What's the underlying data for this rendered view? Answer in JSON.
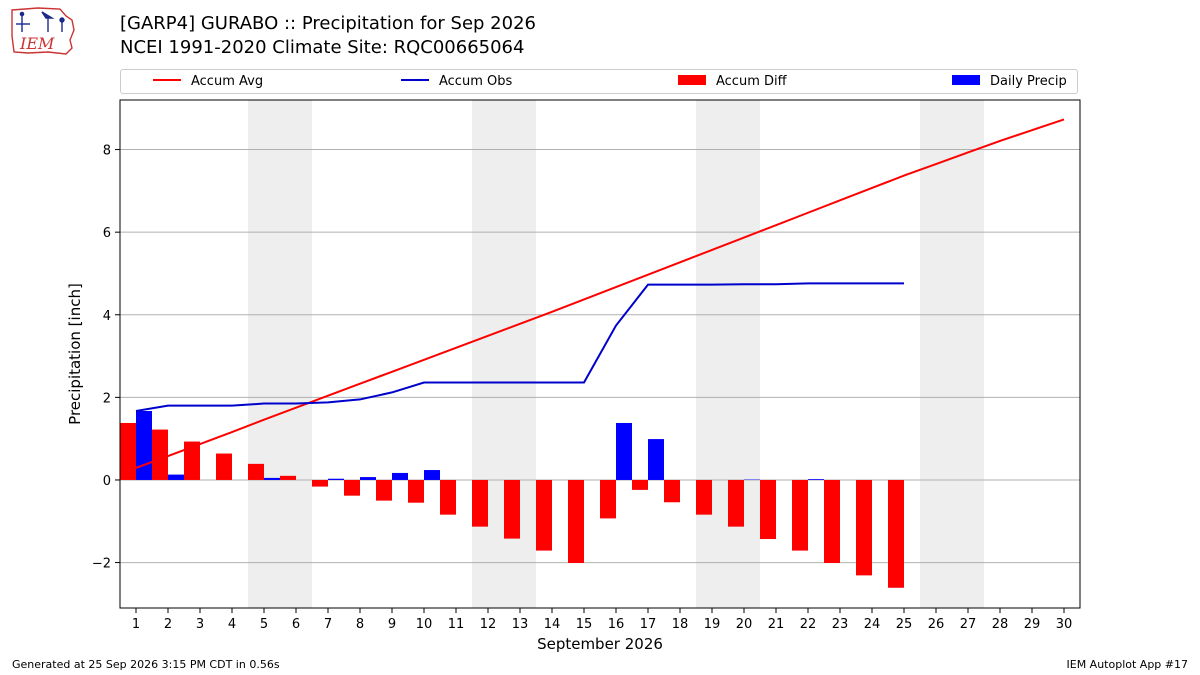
{
  "header": {
    "title_line1": "[GARP4] GURABO :: Precipitation for Sep 2026",
    "title_line2": "NCEI 1991-2020 Climate Site: RQC00665064",
    "logo_text": "IEM"
  },
  "footer": {
    "generated": "Generated at 25 Sep 2026 3:15 PM CDT in 0.56s",
    "app": "IEM Autoplot App #17"
  },
  "legend": [
    {
      "label": "Accum Avg",
      "kind": "line",
      "color": "#ff0000"
    },
    {
      "label": "Accum Obs",
      "kind": "line",
      "color": "#0000cc"
    },
    {
      "label": "Accum Diff",
      "kind": "bar",
      "color": "#ff0000"
    },
    {
      "label": "Daily Precip",
      "kind": "bar",
      "color": "#0000ff"
    }
  ],
  "chart_data": {
    "type": "bar",
    "xlabel": "September 2026",
    "ylabel": "Precipitation [inch]",
    "x": [
      1,
      2,
      3,
      4,
      5,
      6,
      7,
      8,
      9,
      10,
      11,
      12,
      13,
      14,
      15,
      16,
      17,
      18,
      19,
      20,
      21,
      22,
      23,
      24,
      25,
      26,
      27,
      28,
      29,
      30
    ],
    "xlim": [
      0.5,
      30.5
    ],
    "ylim": [
      -3.1,
      9.2
    ],
    "yticks": [
      -2,
      0,
      2,
      4,
      6,
      8
    ],
    "ytick_labels": [
      "−2",
      "0",
      "2",
      "4",
      "6",
      "8"
    ],
    "grid": "horizontal",
    "legend_position": "top",
    "weekend_shading": [
      [
        4.5,
        6.5
      ],
      [
        11.5,
        13.5
      ],
      [
        18.5,
        20.5
      ],
      [
        25.5,
        27.5
      ]
    ],
    "series": [
      {
        "name": "Accum Avg",
        "kind": "line",
        "color": "#ff0000",
        "values": [
          0.29,
          0.58,
          0.87,
          1.16,
          1.46,
          1.75,
          2.04,
          2.33,
          2.62,
          2.91,
          3.2,
          3.49,
          3.78,
          4.07,
          4.37,
          4.67,
          4.97,
          5.27,
          5.57,
          5.87,
          6.17,
          6.47,
          6.77,
          7.07,
          7.37,
          7.65,
          7.93,
          8.21,
          8.47,
          8.73
        ]
      },
      {
        "name": "Accum Obs",
        "kind": "line",
        "color": "#0000cc",
        "values": [
          1.67,
          1.8,
          1.8,
          1.8,
          1.85,
          1.85,
          1.88,
          1.95,
          2.12,
          2.36,
          2.36,
          2.36,
          2.36,
          2.36,
          2.36,
          3.74,
          4.73,
          4.73,
          4.73,
          4.74,
          4.74,
          4.76,
          4.76,
          4.76,
          4.76,
          null,
          null,
          null,
          null,
          null
        ]
      },
      {
        "name": "Accum Diff",
        "kind": "bar",
        "color": "#ff0000",
        "offset": -0.25,
        "values": [
          1.38,
          1.22,
          0.93,
          0.64,
          0.39,
          0.1,
          -0.16,
          -0.38,
          -0.5,
          -0.55,
          -0.84,
          -1.13,
          -1.42,
          -1.71,
          -2.01,
          -0.93,
          -0.24,
          -0.54,
          -0.84,
          -1.13,
          -1.43,
          -1.71,
          -2.01,
          -2.31,
          -2.61,
          null,
          null,
          null,
          null,
          null
        ]
      },
      {
        "name": "Daily Precip",
        "kind": "bar",
        "color": "#0000ff",
        "offset": 0.25,
        "values": [
          1.67,
          0.13,
          0,
          0,
          0.05,
          0,
          0.03,
          0.07,
          0.17,
          0.24,
          0,
          0,
          0,
          0,
          0,
          1.38,
          0.99,
          0,
          0,
          0.01,
          0,
          0.02,
          0,
          0,
          0,
          null,
          null,
          null,
          null,
          null
        ]
      }
    ]
  }
}
